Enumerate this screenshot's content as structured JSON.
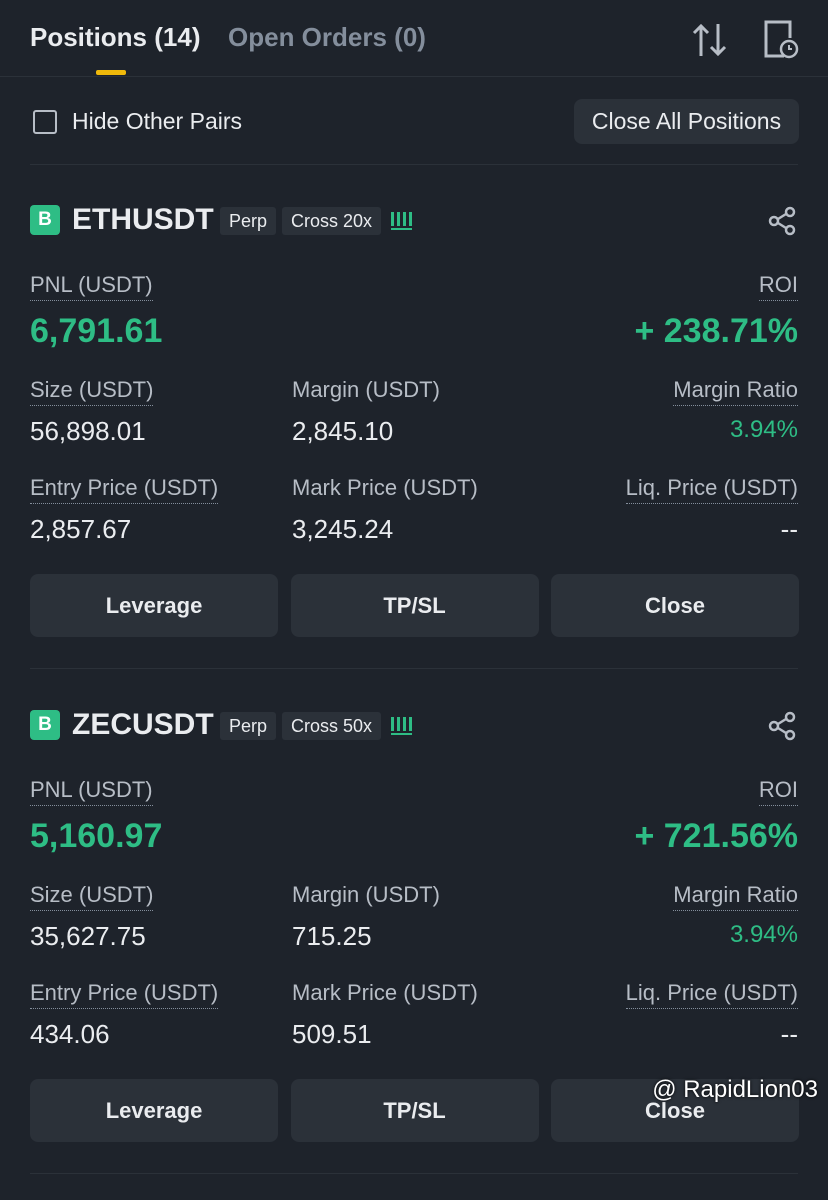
{
  "tabs": [
    "Positions (14)",
    "Open Orders (0)"
  ],
  "filter": {
    "label": "Hide Other Pairs",
    "button": "Close All Positions"
  },
  "positions": [
    {
      "side": "B",
      "symbol": "ETHUSDT",
      "type": "Perp",
      "margin_mode": "Cross 20x",
      "pnl_label": "PNL (USDT)",
      "pnl": "6,791.61",
      "roi_label": "ROI",
      "roi": "+ 238.71%",
      "fields": [
        {
          "label": "Size (USDT)",
          "value": "56,898.01"
        },
        {
          "label": "Margin (USDT)",
          "value": "2,845.10"
        },
        {
          "label": "Margin Ratio",
          "value": "3.94%"
        },
        {
          "label": "Entry Price (USDT)",
          "value": "2,857.67"
        },
        {
          "label": "Mark Price (USDT)",
          "value": "3,245.24"
        },
        {
          "label": "Liq. Price (USDT)",
          "value": "--"
        }
      ],
      "actions": [
        "Leverage",
        "TP/SL",
        "Close"
      ]
    },
    {
      "side": "B",
      "symbol": "ZECUSDT",
      "type": "Perp",
      "margin_mode": "Cross 50x",
      "pnl_label": "PNL (USDT)",
      "pnl": "5,160.97",
      "roi_label": "ROI",
      "roi": "+ 721.56%",
      "fields": [
        {
          "label": "Size (USDT)",
          "value": "35,627.75"
        },
        {
          "label": "Margin (USDT)",
          "value": "715.25"
        },
        {
          "label": "Margin Ratio",
          "value": "3.94%"
        },
        {
          "label": "Entry Price (USDT)",
          "value": "434.06"
        },
        {
          "label": "Mark Price (USDT)",
          "value": "509.51"
        },
        {
          "label": "Liq. Price (USDT)",
          "value": "--"
        }
      ],
      "actions": [
        "Leverage",
        "TP/SL",
        "Close"
      ]
    }
  ],
  "watermark": "@ RapidLion03"
}
